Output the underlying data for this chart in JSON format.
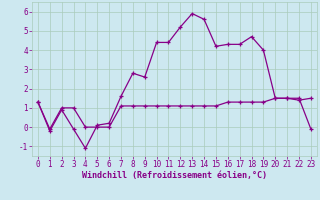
{
  "xlabel": "Windchill (Refroidissement éolien,°C)",
  "bg_color": "#cde8f0",
  "line_color": "#880088",
  "grid_color": "#aaccbb",
  "xlim": [
    -0.5,
    23.5
  ],
  "ylim": [
    -1.5,
    6.5
  ],
  "yticks": [
    -1,
    0,
    1,
    2,
    3,
    4,
    5,
    6
  ],
  "xticks": [
    0,
    1,
    2,
    3,
    4,
    5,
    6,
    7,
    8,
    9,
    10,
    11,
    12,
    13,
    14,
    15,
    16,
    17,
    18,
    19,
    20,
    21,
    22,
    23
  ],
  "line1_x": [
    0,
    1,
    2,
    3,
    4,
    5,
    6,
    7,
    8,
    9,
    10,
    11,
    12,
    13,
    14,
    15,
    16,
    17,
    18,
    19,
    20,
    21,
    22,
    23
  ],
  "line1_y": [
    1.3,
    -0.2,
    0.9,
    -0.1,
    -1.1,
    0.1,
    0.2,
    1.6,
    2.8,
    2.6,
    4.4,
    4.4,
    5.2,
    5.9,
    5.6,
    4.2,
    4.3,
    4.3,
    4.7,
    4.0,
    1.5,
    1.5,
    1.4,
    1.5
  ],
  "line2_x": [
    0,
    1,
    2,
    3,
    4,
    5,
    6,
    7,
    8,
    9,
    10,
    11,
    12,
    13,
    14,
    15,
    16,
    17,
    18,
    19,
    20,
    21,
    22,
    23
  ],
  "line2_y": [
    1.3,
    -0.1,
    1.0,
    1.0,
    0.0,
    0.0,
    0.0,
    1.1,
    1.1,
    1.1,
    1.1,
    1.1,
    1.1,
    1.1,
    1.1,
    1.1,
    1.3,
    1.3,
    1.3,
    1.3,
    1.5,
    1.5,
    1.5,
    -0.1
  ],
  "tick_fontsize": 5.5,
  "xlabel_fontsize": 6.0,
  "xlabel_bold": true
}
